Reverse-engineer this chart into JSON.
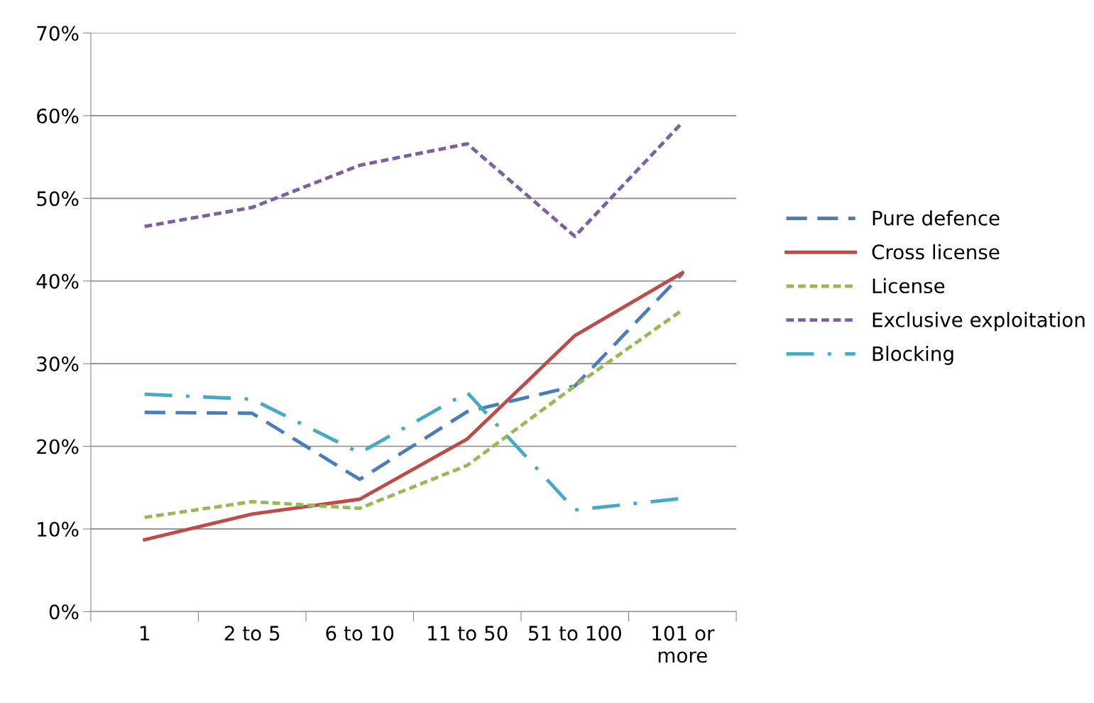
{
  "chart_data": {
    "type": "line",
    "categories": [
      "1",
      "2 to 5",
      "6 to 10",
      "11 to 50",
      "51 to 100",
      "101 or\nmore"
    ],
    "series": [
      {
        "name": "Pure defence",
        "color": "#4a7ebb",
        "line_style": "dashed",
        "values": [
          24.1,
          24.0,
          16.0,
          24.2,
          27.3,
          40.9
        ]
      },
      {
        "name": "Cross license",
        "color": "#be4b48",
        "line_style": "solid",
        "values": [
          8.7,
          11.8,
          13.6,
          20.9,
          33.4,
          41.0
        ]
      },
      {
        "name": "License",
        "color": "#98b954",
        "line_style": "dotted",
        "values": [
          11.4,
          13.3,
          12.5,
          17.7,
          27.3,
          36.5
        ]
      },
      {
        "name": "Exclusive exploitation",
        "color": "#7d60a0",
        "line_style": "dotted",
        "values": [
          46.6,
          48.9,
          54.0,
          56.6,
          45.4,
          59.2
        ]
      },
      {
        "name": "Blocking",
        "color": "#46aac5",
        "line_style": "dashdot",
        "values": [
          26.3,
          25.7,
          19.2,
          26.5,
          12.3,
          13.7
        ]
      }
    ],
    "ylim": [
      0,
      70
    ],
    "yticks": [
      {
        "value": 0,
        "label": "0%"
      },
      {
        "value": 10,
        "label": "10%"
      },
      {
        "value": 20,
        "label": "20%"
      },
      {
        "value": 30,
        "label": "30%"
      },
      {
        "value": 40,
        "label": "40%"
      },
      {
        "value": 50,
        "label": "50%"
      },
      {
        "value": 60,
        "label": "60%"
      },
      {
        "value": 70,
        "label": "70%"
      }
    ],
    "grid": "y",
    "legend": "right",
    "marker": "none"
  }
}
